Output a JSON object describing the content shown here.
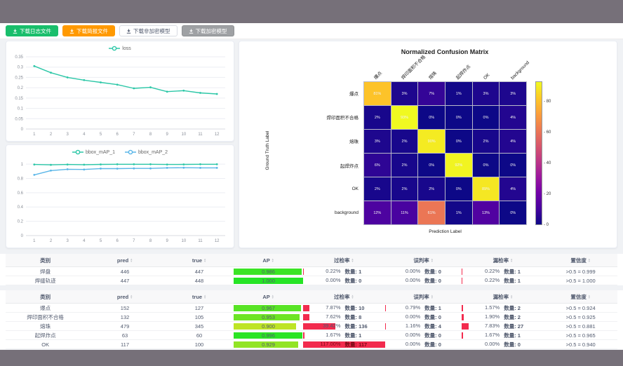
{
  "colors": {
    "accent_teal": "#2cc7a7",
    "accent_blue": "#5ab6e8",
    "bar_red": "#f22b4e",
    "band_gray": "#767079"
  },
  "toolbar": {
    "buttons": [
      {
        "label": "下载日志文件",
        "icon": "download-icon",
        "bg": "#19be6b",
        "fg": "#ffffff",
        "border": "#19be6b"
      },
      {
        "label": "下载简报文件",
        "icon": "download-icon",
        "bg": "#ff9900",
        "fg": "#ffffff",
        "border": "#ff9900"
      },
      {
        "label": "下载非加密模型",
        "icon": "download-icon",
        "bg": "#ffffff",
        "fg": "#515a6e",
        "border": "#d9dce2"
      },
      {
        "label": "下载加密模型",
        "icon": "download-icon",
        "bg": "#9fa1a4",
        "fg": "#ffffff",
        "border": "#8f9194"
      }
    ]
  },
  "chart_data": [
    {
      "type": "line",
      "title": "",
      "x": [
        1,
        2,
        3,
        4,
        5,
        6,
        7,
        8,
        9,
        10,
        11,
        12
      ],
      "yticks": [
        0,
        0.05,
        0.1,
        0.15,
        0.2,
        0.25,
        0.3,
        0.35
      ],
      "ymax": 0.35,
      "grid": true,
      "legend_position": "top",
      "series": [
        {
          "name": "loss",
          "color": "#2cc7a7",
          "values": [
            0.305,
            0.273,
            0.25,
            0.237,
            0.226,
            0.215,
            0.197,
            0.202,
            0.181,
            0.186,
            0.175,
            0.17
          ]
        }
      ]
    },
    {
      "type": "line",
      "title": "",
      "x": [
        1,
        2,
        3,
        4,
        5,
        6,
        7,
        8,
        9,
        10,
        11,
        12
      ],
      "yticks": [
        0,
        0.2,
        0.4,
        0.6,
        0.8,
        1
      ],
      "ymax": 1.05,
      "grid": true,
      "legend_position": "top",
      "series": [
        {
          "name": "bbox_mAP_1",
          "color": "#2cc7a7",
          "values": [
            0.995,
            0.99,
            0.995,
            0.992,
            0.996,
            0.998,
            0.998,
            0.998,
            0.995,
            0.996,
            0.998,
            0.998
          ]
        },
        {
          "name": "bbox_mAP_2",
          "color": "#5ab6e8",
          "values": [
            0.85,
            0.91,
            0.928,
            0.925,
            0.938,
            0.937,
            0.94,
            0.94,
            0.948,
            0.95,
            0.948,
            0.948
          ]
        }
      ]
    },
    {
      "type": "heatmap",
      "title": "Normalized Confusion Matrix",
      "xlabel": "Prediction Label",
      "ylabel": "Ground Truth Label",
      "categories": [
        "爆点",
        "焊印面积不合格",
        "熔珠",
        "起焊炸点",
        "OK",
        "background"
      ],
      "matrix": [
        [
          81,
          3,
          7,
          1,
          3,
          3
        ],
        [
          2,
          93,
          0,
          0,
          0,
          4
        ],
        [
          3,
          2,
          90,
          0,
          2,
          4
        ],
        [
          6,
          2,
          0,
          92,
          0,
          0
        ],
        [
          2,
          2,
          2,
          0,
          89,
          4
        ],
        [
          12,
          11,
          61,
          1,
          13,
          0
        ]
      ],
      "unit": "%",
      "vmax": 93,
      "colorbar_ticks": [
        0,
        20,
        40,
        60,
        80
      ],
      "colormap": "plasma"
    }
  ],
  "tables": {
    "columns": [
      "类别",
      "pred",
      "true",
      "AP",
      "过检率",
      "误判率",
      "漏检率",
      "置信度"
    ],
    "groups": [
      {
        "rows": [
          {
            "cls": "焊盘",
            "pred": "446",
            "truth": "447",
            "ap": 0.986,
            "ap_text": "0.986",
            "over": {
              "pct": 0.22,
              "pct_text": "0.22%",
              "count": "数量: 1"
            },
            "mis": {
              "pct": 0.0,
              "pct_text": "0.00%",
              "count": "数量: 0"
            },
            "miss": {
              "pct": 0.22,
              "pct_text": "0.22%",
              "count": "数量: 1"
            },
            "conf": ">0.5 = 0.999"
          },
          {
            "cls": "焊缝轨迹",
            "pred": "447",
            "truth": "448",
            "ap": 1.0,
            "ap_text": "1.000",
            "over": {
              "pct": 0.0,
              "pct_text": "0.00%",
              "count": "数量: 0"
            },
            "mis": {
              "pct": 0.0,
              "pct_text": "0.00%",
              "count": "数量: 0"
            },
            "miss": {
              "pct": 0.22,
              "pct_text": "0.22%",
              "count": "数量: 1"
            },
            "conf": ">0.5 = 1.000"
          }
        ]
      },
      {
        "rows": [
          {
            "cls": "爆点",
            "pred": "152",
            "truth": "127",
            "ap": 0.967,
            "ap_text": "0.967",
            "over": {
              "pct": 7.87,
              "pct_text": "7.87%",
              "count": "数量: 10"
            },
            "mis": {
              "pct": 0.79,
              "pct_text": "0.79%",
              "count": "数量: 1"
            },
            "miss": {
              "pct": 1.57,
              "pct_text": "1.57%",
              "count": "数量: 2"
            },
            "conf": ">0.5 = 0.924"
          },
          {
            "cls": "焊印面积不合格",
            "pred": "132",
            "truth": "105",
            "ap": 0.953,
            "ap_text": "0.953",
            "over": {
              "pct": 7.62,
              "pct_text": "7.62%",
              "count": "数量: 8"
            },
            "mis": {
              "pct": 0.0,
              "pct_text": "0.00%",
              "count": "数量: 0"
            },
            "miss": {
              "pct": 1.9,
              "pct_text": "1.90%",
              "count": "数量: 2"
            },
            "conf": ">0.5 = 0.925"
          },
          {
            "cls": "熔珠",
            "pred": "479",
            "truth": "345",
            "ap": 0.9,
            "ap_text": "0.900",
            "over": {
              "pct": 39.42,
              "pct_text": "39.42%",
              "count": "数量: 136"
            },
            "mis": {
              "pct": 1.16,
              "pct_text": "1.16%",
              "count": "数量: 4"
            },
            "miss": {
              "pct": 7.83,
              "pct_text": "7.83%",
              "count": "数量: 27"
            },
            "conf": ">0.5 = 0.881"
          },
          {
            "cls": "起焊炸点",
            "pred": "63",
            "truth": "60",
            "ap": 0.996,
            "ap_text": "0.996",
            "over": {
              "pct": 1.67,
              "pct_text": "1.67%",
              "count": "数量: 1"
            },
            "mis": {
              "pct": 0.0,
              "pct_text": "0.00%",
              "count": "数量: 0"
            },
            "miss": {
              "pct": 1.67,
              "pct_text": "1.67%",
              "count": "数量: 1"
            },
            "conf": ">0.5 = 0.965"
          },
          {
            "cls": "OK",
            "pred": "117",
            "truth": "100",
            "ap": 0.929,
            "ap_text": "0.929",
            "over": {
              "pct": 117.0,
              "pct_text": "117.00%",
              "count": "数量: 117"
            },
            "mis": {
              "pct": 0.0,
              "pct_text": "0.00%",
              "count": "数量: 0"
            },
            "miss": {
              "pct": 0.0,
              "pct_text": "0.00%",
              "count": "数量: 0"
            },
            "conf": ">0.5 = 0.940"
          }
        ]
      }
    ]
  }
}
